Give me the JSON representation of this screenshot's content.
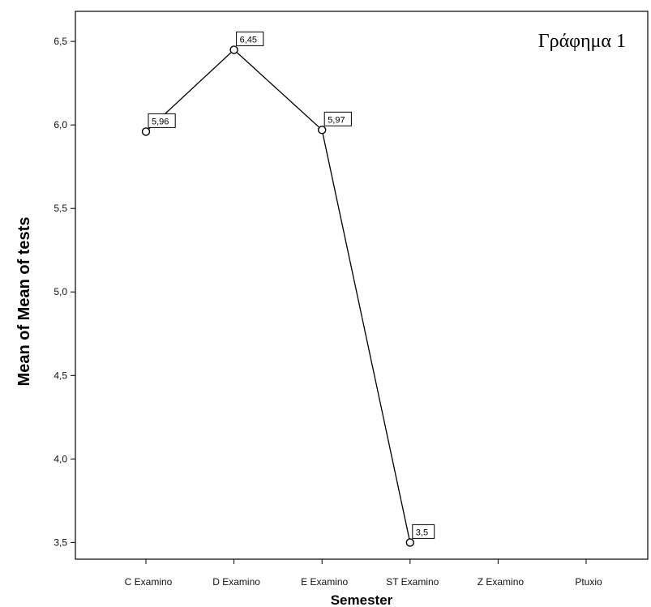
{
  "chart_data": {
    "type": "line",
    "title": "Γράφημα 1",
    "xlabel": "Semester",
    "ylabel": "Mean of Mean of tests",
    "categories": [
      "C Examino",
      "D Examino",
      "E Examino",
      "ST Examino",
      "Z Examino",
      "Ptuxio"
    ],
    "series": [
      {
        "values": [
          5.96,
          6.45,
          5.97,
          3.5,
          null,
          null
        ],
        "labels": [
          "5,96",
          "6,45",
          "5,97",
          "3,5",
          "",
          ""
        ]
      }
    ],
    "ylim": [
      3.4,
      6.68
    ],
    "yticks": [
      3.5,
      4.0,
      4.5,
      5.0,
      5.5,
      6.0,
      6.5
    ],
    "ytick_labels": [
      "3,5",
      "4,0",
      "4,5",
      "5,0",
      "5,5",
      "6,0",
      "6,5"
    ],
    "grid": false,
    "legend": "none",
    "colors": {
      "line": "#000000",
      "marker_fill": "#ffffff",
      "background": "#ffffff"
    }
  }
}
